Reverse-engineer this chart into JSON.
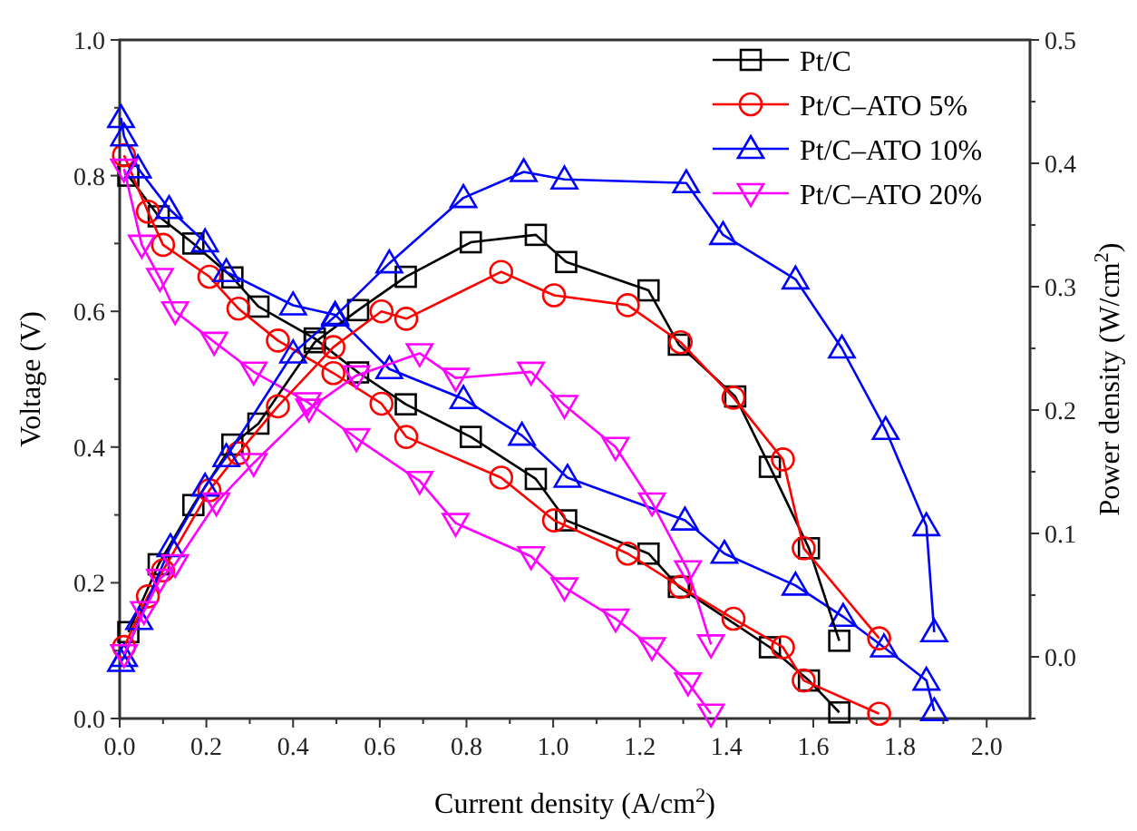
{
  "chart_data": {
    "type": "line",
    "xlabel": "Current density (A/cm$^{2}$)",
    "ylabel": "Voltage (V)",
    "y2label": "Power density (W/cm$^{2}$)",
    "xlim": [
      0,
      2.1
    ],
    "xticks": [
      {
        "value": 0,
        "label": "0.0"
      },
      {
        "value": 0.1,
        "label": null
      },
      {
        "value": 0.2,
        "label": "0.2"
      },
      {
        "value": 0.3,
        "label": null
      },
      {
        "value": 0.4,
        "label": "0.4"
      },
      {
        "value": 0.5,
        "label": null
      },
      {
        "value": 0.6,
        "label": "0.6"
      },
      {
        "value": 0.7,
        "label": null
      },
      {
        "value": 0.8,
        "label": "0.8"
      },
      {
        "value": 0.9,
        "label": null
      },
      {
        "value": 1,
        "label": "1.0"
      },
      {
        "value": 1.1,
        "label": null
      },
      {
        "value": 1.2,
        "label": "1.2"
      },
      {
        "value": 1.3,
        "label": null
      },
      {
        "value": 1.4,
        "label": "1.4"
      },
      {
        "value": 1.5,
        "label": null
      },
      {
        "value": 1.6,
        "label": "1.6"
      },
      {
        "value": 1.7,
        "label": null
      },
      {
        "value": 1.8,
        "label": "1.8"
      },
      {
        "value": 1.9,
        "label": null
      },
      {
        "value": 2,
        "label": "2.0"
      }
    ],
    "ylim": [
      0,
      1
    ],
    "yticks": [
      {
        "value": 0,
        "label": "0.0"
      },
      {
        "value": 0.1,
        "label": null
      },
      {
        "value": 0.2,
        "label": "0.2"
      },
      {
        "value": 0.3,
        "label": null
      },
      {
        "value": 0.4,
        "label": "0.4"
      },
      {
        "value": 0.5,
        "label": null
      },
      {
        "value": 0.6,
        "label": "0.6"
      },
      {
        "value": 0.7,
        "label": null
      },
      {
        "value": 0.8,
        "label": "0.8"
      },
      {
        "value": 0.9,
        "label": null
      },
      {
        "value": 1,
        "label": "1.0"
      }
    ],
    "y2lim": [
      -0.05,
      0.5
    ],
    "y2ticks": [
      {
        "value": -0.05,
        "label": null
      },
      {
        "value": 0,
        "label": "0.0"
      },
      {
        "value": 0.05,
        "label": null
      },
      {
        "value": 0.1,
        "label": "0.1"
      },
      {
        "value": 0.15,
        "label": null
      },
      {
        "value": 0.2,
        "label": "0.2"
      },
      {
        "value": 0.25,
        "label": null
      },
      {
        "value": 0.3,
        "label": "0.3"
      },
      {
        "value": 0.35,
        "label": null
      },
      {
        "value": 0.4,
        "label": "0.4"
      },
      {
        "value": 0.45,
        "label": null
      },
      {
        "value": 0.5,
        "label": "0.5"
      }
    ],
    "grid": false,
    "legend": "top right",
    "line_style": "solid",
    "series": [
      {
        "name": "Pt/C",
        "color": "#000000",
        "marker": "square",
        "x": [
          0.02,
          0.09,
          0.17,
          0.26,
          0.32,
          0.45,
          0.55,
          0.66,
          0.81,
          0.96,
          1.03,
          1.22,
          1.29,
          1.5,
          1.59,
          1.66
        ],
        "values": [
          0.8,
          0.74,
          0.7,
          0.65,
          0.607,
          0.56,
          0.51,
          0.463,
          0.415,
          0.353,
          0.292,
          0.243,
          0.194,
          0.105,
          0.056,
          0.009
        ]
      },
      {
        "name": "Pt/C–ATO 5%",
        "color": "#ff0000",
        "marker": "circle",
        "x": [
          0.01,
          0.065,
          0.1,
          0.207,
          0.274,
          0.365,
          0.493,
          0.604,
          0.661,
          0.88,
          1.002,
          1.172,
          1.294,
          1.416,
          1.53,
          1.578,
          1.752
        ],
        "values": [
          0.83,
          0.747,
          0.698,
          0.651,
          0.604,
          0.557,
          0.509,
          0.464,
          0.415,
          0.355,
          0.292,
          0.243,
          0.194,
          0.147,
          0.105,
          0.056,
          0.007
        ]
      },
      {
        "name": "Pt/C–ATO 10%",
        "color": "#0000ff",
        "marker": "triangle",
        "x": [
          0.003,
          0.01,
          0.042,
          0.114,
          0.197,
          0.246,
          0.4,
          0.497,
          0.622,
          0.793,
          0.928,
          1.033,
          1.304,
          1.395,
          1.559,
          1.669,
          1.763,
          1.861,
          1.879
        ],
        "values": [
          0.885,
          0.858,
          0.811,
          0.751,
          0.702,
          0.658,
          0.609,
          0.595,
          0.515,
          0.471,
          0.417,
          0.355,
          0.292,
          0.243,
          0.196,
          0.15,
          0.105,
          0.056,
          0.011
        ]
      },
      {
        "name": "Pt/C–ATO 20%",
        "color": "#ff00ff",
        "marker": "triangle-down",
        "x": [
          0.01,
          0.051,
          0.093,
          0.128,
          0.218,
          0.309,
          0.434,
          0.546,
          0.692,
          0.775,
          0.949,
          1.026,
          1.144,
          1.228,
          1.311,
          1.364
        ],
        "values": [
          0.81,
          0.698,
          0.649,
          0.6,
          0.555,
          0.511,
          0.466,
          0.413,
          0.35,
          0.288,
          0.239,
          0.193,
          0.147,
          0.105,
          0.053,
          0.007
        ]
      },
      {
        "color": "#000000",
        "marker": "square",
        "axis": "y2",
        "x": [
          0.02,
          0.09,
          0.17,
          0.26,
          0.32,
          0.45,
          0.55,
          0.66,
          0.81,
          0.96,
          1.03,
          1.22,
          1.29,
          1.42,
          1.5,
          1.59,
          1.66
        ],
        "values": [
          0.02,
          0.075,
          0.123,
          0.172,
          0.189,
          0.255,
          0.281,
          0.308,
          0.336,
          0.342,
          0.32,
          0.297,
          0.253,
          0.211,
          0.154,
          0.088,
          0.013
        ]
      },
      {
        "color": "#ff0000",
        "marker": "circle",
        "axis": "y2",
        "x": [
          0.01,
          0.065,
          0.1,
          0.207,
          0.274,
          0.365,
          0.493,
          0.604,
          0.661,
          0.88,
          1.002,
          1.172,
          1.294,
          1.416,
          1.53,
          1.578,
          1.752
        ],
        "values": [
          0.008,
          0.049,
          0.07,
          0.135,
          0.165,
          0.203,
          0.251,
          0.28,
          0.274,
          0.312,
          0.293,
          0.285,
          0.255,
          0.21,
          0.16,
          0.088,
          0.015
        ]
      },
      {
        "color": "#0000ff",
        "marker": "triangle",
        "axis": "y2",
        "x": [
          0.003,
          0.01,
          0.045,
          0.117,
          0.197,
          0.246,
          0.4,
          0.497,
          0.622,
          0.793,
          0.932,
          1.026,
          1.307,
          1.392,
          1.559,
          1.666,
          1.767,
          1.861,
          1.879
        ],
        "values": [
          -0.004,
          0,
          0.03,
          0.089,
          0.138,
          0.162,
          0.246,
          0.276,
          0.319,
          0.372,
          0.393,
          0.387,
          0.384,
          0.342,
          0.306,
          0.25,
          0.184,
          0.106,
          0.02
        ]
      },
      {
        "color": "#ff00ff",
        "marker": "triangle-down",
        "axis": "y2",
        "x": [
          0.01,
          0.056,
          0.093,
          0.128,
          0.223,
          0.309,
          0.437,
          0.546,
          0.692,
          0.775,
          0.949,
          1.026,
          1.144,
          1.228,
          1.311,
          1.364
        ],
        "values": [
          0.002,
          0.037,
          0.063,
          0.075,
          0.125,
          0.157,
          0.201,
          0.228,
          0.246,
          0.226,
          0.231,
          0.204,
          0.17,
          0.125,
          0.07,
          0.01
        ]
      }
    ]
  }
}
